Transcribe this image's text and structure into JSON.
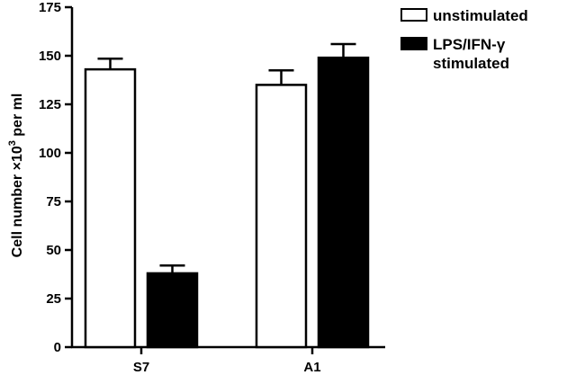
{
  "chart_data": {
    "type": "bar",
    "categories": [
      "S7",
      "A1"
    ],
    "series": [
      {
        "name": "unstimulated",
        "values": [
          143,
          135
        ],
        "errors": [
          5.5,
          7.5
        ],
        "color": "#ffffff"
      },
      {
        "name": "LPS/IFN-γ stimulated",
        "values": [
          38,
          149
        ],
        "errors": [
          4,
          7
        ],
        "color": "#000000"
      }
    ],
    "ylabel": {
      "main": "Cell number ×10",
      "sup": "3",
      "suffix": " per ml"
    },
    "ylim": [
      0,
      175
    ],
    "yticks": [
      0,
      25,
      50,
      75,
      100,
      125,
      150,
      175
    ],
    "legend": {
      "position": "top-right",
      "entries": [
        {
          "lines": [
            "unstimulated"
          ],
          "color": "#ffffff"
        },
        {
          "lines": [
            "LPS/IFN-γ",
            "stimulated"
          ],
          "color": "#000000"
        }
      ]
    },
    "grid": false
  }
}
